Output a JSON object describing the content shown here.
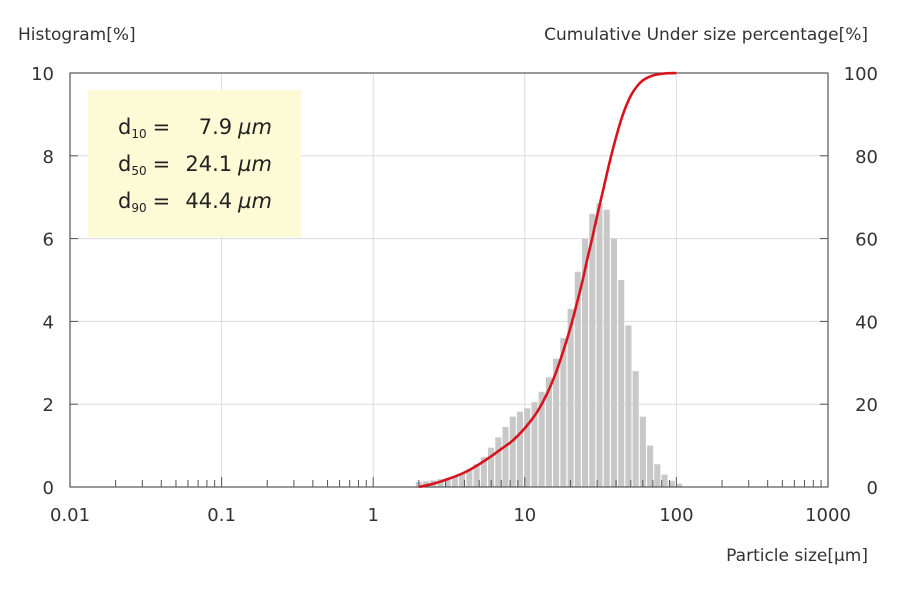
{
  "chart_data": {
    "type": "bar",
    "left_axis_title": "Histogram[%]",
    "right_axis_title": "Cumulative Under size percentage[%]",
    "xlabel": "Particle size[µm]",
    "x_scale": "log",
    "xlim": [
      0.01,
      1000
    ],
    "x_ticks": [
      "0.01",
      "0.1",
      "1",
      "10",
      "100",
      "1000"
    ],
    "y_left_lim": [
      0,
      10
    ],
    "y_left_ticks": [
      "0",
      "2",
      "4",
      "6",
      "8",
      "10"
    ],
    "y_right_lim": [
      0,
      100
    ],
    "y_right_ticks": [
      "0",
      "20",
      "40",
      "60",
      "80",
      "100"
    ],
    "grid": true,
    "histogram": {
      "color": "#c8c8c8",
      "x": [
        2.0,
        2.23,
        2.49,
        2.78,
        3.1,
        3.46,
        3.86,
        4.31,
        4.81,
        5.37,
        5.99,
        6.69,
        7.46,
        8.33,
        9.29,
        10.37,
        11.58,
        12.92,
        14.42,
        16.09,
        17.96,
        20.05,
        22.37,
        24.97,
        27.87,
        31.1,
        34.71,
        38.74,
        43.24,
        48.26,
        53.86,
        60.11,
        67.09,
        74.88,
        83.57,
        93.27,
        104.1
      ],
      "values": [
        0.12,
        0.14,
        0.16,
        0.19,
        0.22,
        0.27,
        0.33,
        0.42,
        0.55,
        0.72,
        0.95,
        1.2,
        1.45,
        1.7,
        1.82,
        1.9,
        2.05,
        2.3,
        2.65,
        3.1,
        3.6,
        4.3,
        5.2,
        6.0,
        6.6,
        6.85,
        6.7,
        6.0,
        5.0,
        3.9,
        2.8,
        1.7,
        1.0,
        0.55,
        0.3,
        0.15,
        0.08
      ]
    },
    "cumulative": {
      "color": "#d7141e",
      "x": [
        2.0,
        2.5,
        3.0,
        4.0,
        5.0,
        6.0,
        7.0,
        8.0,
        9.0,
        10.0,
        12.0,
        14.0,
        16.0,
        18.0,
        20.0,
        22.0,
        24.1,
        26.0,
        28.0,
        30.0,
        33.0,
        36.0,
        40.0,
        44.4,
        50.0,
        55.0,
        60.0,
        70.0,
        80.0,
        90.0,
        100.0
      ],
      "values": [
        0,
        0.8,
        1.7,
        3.5,
        5.5,
        7.4,
        9.2,
        10.7,
        12.4,
        14.2,
        18.0,
        22.5,
        27.5,
        33.0,
        38.5,
        44.2,
        50.0,
        55.5,
        60.5,
        65.5,
        72.0,
        78.0,
        84.5,
        90.0,
        94.5,
        96.8,
        98.2,
        99.4,
        99.8,
        99.95,
        100
      ]
    }
  },
  "stats": {
    "d10": {
      "prefix": "d",
      "sub": "10",
      "eq": "=",
      "value": "7.9",
      "unit": "µm"
    },
    "d50": {
      "prefix": "d",
      "sub": "50",
      "eq": "=",
      "value": "24.1",
      "unit": "µm"
    },
    "d90": {
      "prefix": "d",
      "sub": "90",
      "eq": "=",
      "value": "44.4",
      "unit": "µm"
    }
  }
}
